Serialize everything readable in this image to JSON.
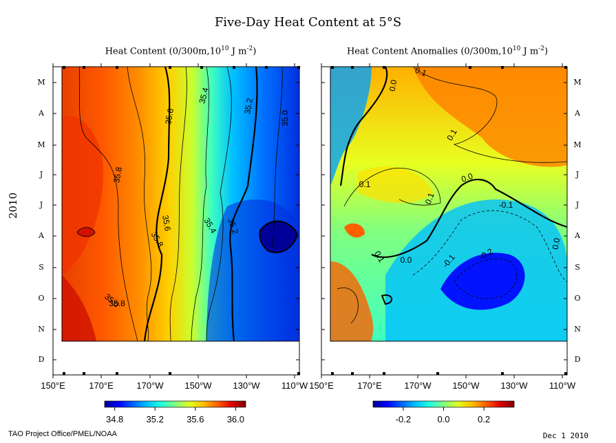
{
  "title": "Five-Day Heat Content at 5°S",
  "footer_left": "TAO Project Office/PMEL/NOAA",
  "footer_right": "Dec  1 2010",
  "year_label": "2010",
  "month_ticks": [
    "M",
    "A",
    "M",
    "J",
    "J",
    "A",
    "S",
    "O",
    "N",
    "D"
  ],
  "colors": {
    "jet": [
      "#00008f",
      "#0000ff",
      "#0060ff",
      "#00c0ff",
      "#20ffe0",
      "#80ff80",
      "#e0ff20",
      "#ffc000",
      "#ff6000",
      "#e00000",
      "#800000"
    ]
  },
  "chart_data": [
    {
      "type": "heatmap",
      "title": "Heat Content (0/300m,10",
      "title_sup": "10",
      "title_units": " J m",
      "title_exp": "-2",
      "title_end": ")",
      "x_tick_labels": [
        "150°E",
        "170°E",
        "170°W",
        "150°W",
        "130°W",
        "110°W"
      ],
      "y_axis": "time (Mar–Dec 2010)",
      "colorbar": {
        "range": [
          34.7,
          36.1
        ],
        "tick_labels": [
          "34.8",
          "35.2",
          "35.6",
          "36.0"
        ],
        "ticks": [
          34.8,
          35.2,
          35.6,
          36.0
        ]
      },
      "contour_labels": [
        "35.8",
        "35.6",
        "35.4",
        "35.2",
        "35.0",
        "35.8",
        "35.6",
        "35.4",
        "35.2",
        "35.0",
        "35.8"
      ],
      "contour_levels": [
        35.0,
        35.2,
        35.4,
        35.6,
        35.8
      ]
    },
    {
      "type": "heatmap",
      "title": "Heat Content Anomalies (0/300m,10",
      "title_sup": "10",
      "title_units": " J m",
      "title_exp": "-2",
      "title_end": ")",
      "x_tick_labels": [
        "150°E",
        "170°E",
        "170°W",
        "150°W",
        "130°W",
        "110°W"
      ],
      "y_axis": "time (Mar–Dec 2010)",
      "colorbar": {
        "range": [
          -0.35,
          0.35
        ],
        "tick_labels": [
          "-0.2",
          "0.0",
          "0.2"
        ],
        "ticks": [
          -0.2,
          0.0,
          0.2
        ]
      },
      "contour_labels": [
        "0.1",
        "0.0",
        "0.1",
        "0.1",
        "0.1",
        "0.0",
        "-0.1",
        "0.1",
        "0.0",
        "-0.1",
        "0.0",
        "-0.2"
      ],
      "contour_levels": [
        -0.2,
        -0.1,
        0.0,
        0.1
      ]
    }
  ]
}
